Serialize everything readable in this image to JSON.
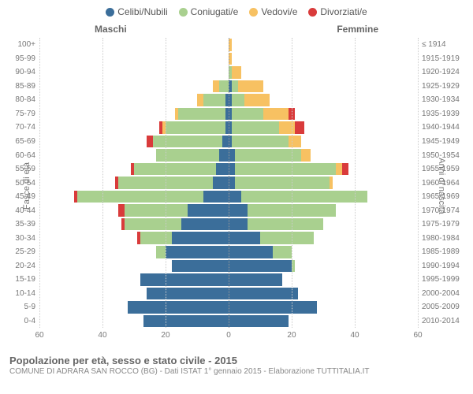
{
  "legend": [
    {
      "label": "Celibi/Nubili",
      "color": "#3b6e9a"
    },
    {
      "label": "Coniugati/e",
      "color": "#a9d08f"
    },
    {
      "label": "Vedovi/e",
      "color": "#f7c162"
    },
    {
      "label": "Divorziati/e",
      "color": "#d93b3b"
    }
  ],
  "gender_left": "Maschi",
  "gender_right": "Femmine",
  "y_left_title": "Fasce di età",
  "y_right_title": "Anni di nascita",
  "x_max": 60,
  "x_ticks": [
    60,
    40,
    20,
    0,
    20,
    40,
    60
  ],
  "title": "Popolazione per età, sesso e stato civile - 2015",
  "subtitle": "COMUNE DI ADRARA SAN ROCCO (BG) - Dati ISTAT 1° gennaio 2015 - Elaborazione TUTTITALIA.IT",
  "colors": {
    "single": "#3b6e9a",
    "married": "#a9d08f",
    "widowed": "#f7c162",
    "divorced": "#d93b3b",
    "grid": "#cccccc",
    "center_grid": "#999999",
    "bg": "#ffffff"
  },
  "rows": [
    {
      "age": "100+",
      "birth": "≤ 1914",
      "m": {
        "s": 0,
        "c": 0,
        "w": 0,
        "d": 0
      },
      "f": {
        "s": 0,
        "c": 0,
        "w": 1,
        "d": 0
      }
    },
    {
      "age": "95-99",
      "birth": "1915-1919",
      "m": {
        "s": 0,
        "c": 0,
        "w": 0,
        "d": 0
      },
      "f": {
        "s": 0,
        "c": 0,
        "w": 1,
        "d": 0
      }
    },
    {
      "age": "90-94",
      "birth": "1920-1924",
      "m": {
        "s": 0,
        "c": 0,
        "w": 0,
        "d": 0
      },
      "f": {
        "s": 0,
        "c": 1,
        "w": 3,
        "d": 0
      }
    },
    {
      "age": "85-89",
      "birth": "1925-1929",
      "m": {
        "s": 0,
        "c": 3,
        "w": 2,
        "d": 0
      },
      "f": {
        "s": 1,
        "c": 2,
        "w": 8,
        "d": 0
      }
    },
    {
      "age": "80-84",
      "birth": "1930-1934",
      "m": {
        "s": 1,
        "c": 7,
        "w": 2,
        "d": 0
      },
      "f": {
        "s": 1,
        "c": 4,
        "w": 8,
        "d": 0
      }
    },
    {
      "age": "75-79",
      "birth": "1935-1939",
      "m": {
        "s": 1,
        "c": 15,
        "w": 1,
        "d": 0
      },
      "f": {
        "s": 1,
        "c": 10,
        "w": 8,
        "d": 2
      }
    },
    {
      "age": "70-74",
      "birth": "1940-1944",
      "m": {
        "s": 1,
        "c": 19,
        "w": 1,
        "d": 1
      },
      "f": {
        "s": 1,
        "c": 15,
        "w": 5,
        "d": 3
      }
    },
    {
      "age": "65-69",
      "birth": "1945-1949",
      "m": {
        "s": 2,
        "c": 22,
        "w": 0,
        "d": 2
      },
      "f": {
        "s": 1,
        "c": 18,
        "w": 4,
        "d": 0
      }
    },
    {
      "age": "60-64",
      "birth": "1950-1954",
      "m": {
        "s": 3,
        "c": 20,
        "w": 0,
        "d": 0
      },
      "f": {
        "s": 2,
        "c": 21,
        "w": 3,
        "d": 0
      }
    },
    {
      "age": "55-59",
      "birth": "1955-1959",
      "m": {
        "s": 4,
        "c": 26,
        "w": 0,
        "d": 1
      },
      "f": {
        "s": 2,
        "c": 32,
        "w": 2,
        "d": 2
      }
    },
    {
      "age": "50-54",
      "birth": "1960-1964",
      "m": {
        "s": 5,
        "c": 30,
        "w": 0,
        "d": 1
      },
      "f": {
        "s": 2,
        "c": 30,
        "w": 1,
        "d": 0
      }
    },
    {
      "age": "45-49",
      "birth": "1965-1969",
      "m": {
        "s": 8,
        "c": 40,
        "w": 0,
        "d": 1
      },
      "f": {
        "s": 4,
        "c": 40,
        "w": 0,
        "d": 0
      }
    },
    {
      "age": "40-44",
      "birth": "1970-1974",
      "m": {
        "s": 13,
        "c": 20,
        "w": 0,
        "d": 2
      },
      "f": {
        "s": 6,
        "c": 28,
        "w": 0,
        "d": 0
      }
    },
    {
      "age": "35-39",
      "birth": "1975-1979",
      "m": {
        "s": 15,
        "c": 18,
        "w": 0,
        "d": 1
      },
      "f": {
        "s": 6,
        "c": 24,
        "w": 0,
        "d": 0
      }
    },
    {
      "age": "30-34",
      "birth": "1980-1984",
      "m": {
        "s": 18,
        "c": 10,
        "w": 0,
        "d": 1
      },
      "f": {
        "s": 10,
        "c": 17,
        "w": 0,
        "d": 0
      }
    },
    {
      "age": "25-29",
      "birth": "1985-1989",
      "m": {
        "s": 20,
        "c": 3,
        "w": 0,
        "d": 0
      },
      "f": {
        "s": 14,
        "c": 6,
        "w": 0,
        "d": 0
      }
    },
    {
      "age": "20-24",
      "birth": "1990-1994",
      "m": {
        "s": 18,
        "c": 0,
        "w": 0,
        "d": 0
      },
      "f": {
        "s": 20,
        "c": 1,
        "w": 0,
        "d": 0
      }
    },
    {
      "age": "15-19",
      "birth": "1995-1999",
      "m": {
        "s": 28,
        "c": 0,
        "w": 0,
        "d": 0
      },
      "f": {
        "s": 17,
        "c": 0,
        "w": 0,
        "d": 0
      }
    },
    {
      "age": "10-14",
      "birth": "2000-2004",
      "m": {
        "s": 26,
        "c": 0,
        "w": 0,
        "d": 0
      },
      "f": {
        "s": 22,
        "c": 0,
        "w": 0,
        "d": 0
      }
    },
    {
      "age": "5-9",
      "birth": "2005-2009",
      "m": {
        "s": 32,
        "c": 0,
        "w": 0,
        "d": 0
      },
      "f": {
        "s": 28,
        "c": 0,
        "w": 0,
        "d": 0
      }
    },
    {
      "age": "0-4",
      "birth": "2010-2014",
      "m": {
        "s": 27,
        "c": 0,
        "w": 0,
        "d": 0
      },
      "f": {
        "s": 19,
        "c": 0,
        "w": 0,
        "d": 0
      }
    }
  ]
}
